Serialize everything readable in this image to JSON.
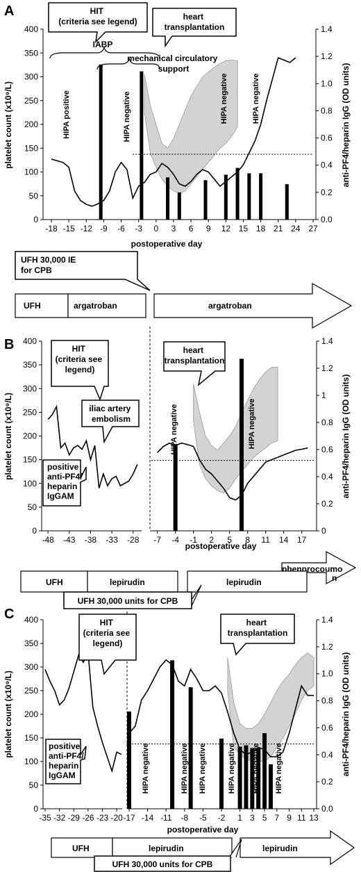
{
  "panels": [
    {
      "label": "A",
      "left_axis": {
        "title": "platelet count (x10⁹/L)",
        "ticks": [
          "0",
          "50",
          "100",
          "150",
          "200",
          "250",
          "300",
          "350",
          "400"
        ]
      },
      "right_axis": {
        "title": "anti-PF4/heparin IgG (OD units)",
        "ticks": [
          "0.0",
          "0.2",
          "0.4",
          "0.6",
          "0.8",
          "1.0",
          "1.2",
          "1.4"
        ]
      },
      "x_axis": {
        "title": "postoperative day",
        "ticks": [
          "-18",
          "-15",
          "-12",
          "-9",
          "-6",
          "-3",
          "0",
          "3",
          "6",
          "9",
          "12",
          "15",
          "18",
          "21",
          "24",
          "27"
        ]
      },
      "callouts": {
        "hit": "HIT\n(criteria see legend)",
        "transplant": "heart\ntransplantation",
        "iabp": "IABP",
        "mcs": "mechanical circulatory\nsupport",
        "ufh_cpb": "UFH 30,000 IE\nfor CPB"
      },
      "bar_labels": {
        "b1": "HIPA positive",
        "b2": "HIPA negative",
        "b3": "HIPA negative",
        "b4": "HIPA negative"
      },
      "therapy": {
        "t1": "UFH",
        "t2": "argatroban",
        "t3": "argatroban"
      }
    },
    {
      "label": "B",
      "left_axis": {
        "title": "platelet count (x10⁹/L)",
        "ticks": [
          "0",
          "50",
          "100",
          "150",
          "200",
          "250",
          "300",
          "350",
          "400"
        ]
      },
      "right_axis": {
        "title": "anti-PF4/heparin IgG (OD units)",
        "ticks": [
          "0",
          "0.2",
          "0.4",
          "0.6",
          "0.8",
          "1",
          "1.2",
          "1.4"
        ]
      },
      "x_axis": {
        "title": "postoperative day",
        "ticks_pre": [
          "-48",
          "-43",
          "-38",
          "-33",
          "-28"
        ],
        "ticks_post": [
          "-7",
          "-4",
          "-1",
          "2",
          "5",
          "8",
          "11",
          "14",
          "17"
        ]
      },
      "callouts": {
        "hit": "HIT\n(criteria see\nlegend)",
        "transplant": "heart\ntransplantation",
        "iliac": "iliac artery\nembolism",
        "positive": "positive\nanti-PF4/\nheparin\nIgGAM",
        "ufh_cpb": "UFH 30,000 units for CPB"
      },
      "bar_labels": {
        "b1": "HIPA negative",
        "b2": "HIPA negative"
      },
      "therapy": {
        "t1": "UFH",
        "t2": "lepirudin",
        "t3": "lepirudin",
        "t4": "phenprocoumo\nn"
      }
    },
    {
      "label": "C",
      "left_axis": {
        "title": "platelet count (x10⁹/L)",
        "ticks": [
          "0",
          "50",
          "100",
          "150",
          "200",
          "250",
          "300",
          "350",
          "400"
        ]
      },
      "right_axis": {
        "title": "anti-PF4/heparin IgG (OD units)",
        "ticks": [
          "0.0",
          "0.2",
          "0.4",
          "0.6",
          "0.8",
          "1.0",
          "1.2",
          "1.4"
        ]
      },
      "x_axis": {
        "title": "postoperative day",
        "ticks_pre": [
          "-35",
          "-32",
          "-29",
          "-26",
          "-23",
          "-20"
        ],
        "ticks_post": [
          "-17",
          "-14",
          "-11",
          "-8",
          "-5",
          "-2",
          "1",
          "3",
          "5",
          "7",
          "9",
          "11",
          "13"
        ]
      },
      "callouts": {
        "hit": "HIT\n(criteria see\nlegend)",
        "transplant": "heart\ntransplantation",
        "positive": "positive\nanti-PF4/\nheparin\nIgGAM",
        "ufh_cpb": "UFH 30,000 units for CPB"
      },
      "bar_labels": {
        "b1": "HIPA negative",
        "b2": "HIPA negative",
        "b3": "HIPA negative",
        "b4": "HIPA negative",
        "b5": "HIPA negative",
        "b6": "HIPA negative"
      },
      "therapy": {
        "t1": "UFH",
        "t2": "lepirudin",
        "t3": "lepirudin"
      }
    }
  ],
  "chart_data": [
    {
      "type": "line+bar",
      "panel": "A",
      "xlabel": "postoperative day",
      "ylabel": "platelet count (x10⁹/L)",
      "y2label": "anti-PF4/heparin IgG (OD units)",
      "xlim": [
        -18,
        27
      ],
      "ylim": [
        0,
        400
      ],
      "y2lim": [
        0,
        1.4
      ],
      "platelet_line": {
        "x": [
          -18,
          -16,
          -15,
          -14,
          -13,
          -12,
          -11,
          -10,
          -9,
          -8,
          -7,
          -6,
          -5,
          -4,
          -3,
          -2,
          -1,
          0,
          1,
          2,
          3,
          4,
          5,
          6,
          7,
          8,
          9,
          10,
          11,
          12,
          13,
          14,
          15,
          16,
          17,
          18,
          19,
          20,
          21,
          22,
          23,
          24
        ],
        "y": [
          127,
          120,
          110,
          60,
          40,
          32,
          28,
          33,
          40,
          60,
          100,
          120,
          105,
          45,
          70,
          78,
          95,
          100,
          118,
          110,
          95,
          75,
          70,
          80,
          95,
          105,
          100,
          85,
          70,
          80,
          90,
          100,
          115,
          140,
          165,
          200,
          250,
          295,
          340,
          335,
          330,
          340
        ]
      },
      "range_band": {
        "x": [
          -2,
          -1,
          0,
          1,
          2,
          3,
          4,
          5,
          6,
          7,
          8,
          9,
          10,
          11,
          12,
          13,
          14
        ],
        "lower": [
          225,
          140,
          110,
          85,
          70,
          60,
          55,
          60,
          75,
          90,
          105,
          120,
          135,
          150,
          160,
          175,
          195
        ],
        "upper": [
          305,
          240,
          200,
          160,
          150,
          170,
          200,
          230,
          260,
          280,
          300,
          310,
          320,
          328,
          334,
          335,
          334
        ]
      },
      "igg_bars": {
        "x": [
          -9.5,
          -2.5,
          2,
          4,
          8.5,
          12,
          14,
          16,
          18,
          22.5
        ],
        "values": [
          1.14,
          1.09,
          0.31,
          0.2,
          0.29,
          0.33,
          0.38,
          0.34,
          0.34,
          0.26
        ]
      },
      "threshold": 0.48
    },
    {
      "type": "line+bar",
      "panel": "B",
      "xlabel": "postoperative day",
      "ylabel": "platelet count (x10⁹/L)",
      "y2label": "anti-PF4/heparin IgG (OD units)",
      "ylim": [
        0,
        400
      ],
      "y2lim": [
        0,
        1.4
      ],
      "pre_segment": {
        "xlim": [
          -49,
          -26
        ],
        "x": [
          -48,
          -47,
          -46,
          -45,
          -44,
          -43,
          -42,
          -41,
          -40,
          -39,
          -38,
          -37,
          -36,
          -35,
          -34,
          -33,
          -32,
          -31,
          -30,
          -29,
          -28,
          -27
        ],
        "y": [
          235,
          245,
          262,
          175,
          185,
          160,
          175,
          180,
          172,
          190,
          150,
          180,
          90,
          120,
          95,
          110,
          115,
          95,
          100,
          105,
          120,
          140
        ]
      },
      "post_segment": {
        "xlim": [
          -8,
          19
        ],
        "x": [
          -7,
          -6,
          -5,
          -4,
          -3,
          -2,
          -1,
          0,
          1,
          2,
          3,
          4,
          5,
          6,
          7,
          8,
          9,
          10,
          11,
          12,
          13,
          14,
          15,
          16,
          17,
          18
        ],
        "y": [
          165,
          178,
          185,
          180,
          185,
          182,
          178,
          150,
          130,
          120,
          105,
          90,
          70,
          65,
          75,
          100,
          115,
          130,
          145,
          150,
          155,
          160,
          165,
          170,
          172,
          175
        ]
      },
      "range_band": {
        "x": [
          -1,
          0,
          1,
          2,
          3,
          4,
          5,
          6,
          7,
          8,
          9,
          10,
          11,
          12,
          13
        ],
        "lower": [
          230,
          140,
          110,
          95,
          85,
          80,
          90,
          110,
          125,
          140,
          155,
          165,
          175,
          185,
          190
        ],
        "upper": [
          310,
          250,
          200,
          180,
          170,
          185,
          200,
          220,
          250,
          275,
          300,
          320,
          335,
          345,
          345
        ]
      },
      "igg_bars": {
        "x": [
          -4,
          7
        ],
        "values": [
          0.64,
          1.27
        ]
      },
      "threshold": 0.52
    },
    {
      "type": "line+bar",
      "panel": "C",
      "xlabel": "postoperative day",
      "ylabel": "platelet count (x10⁹/L)",
      "y2label": "anti-PF4/heparin IgG (OD units)",
      "ylim": [
        0,
        400
      ],
      "y2lim": [
        0,
        1.4
      ],
      "pre_segment": {
        "xlim": [
          -35,
          -19
        ],
        "x": [
          -35,
          -34,
          -33,
          -32,
          -31,
          -30,
          -29,
          -28,
          -27,
          -26,
          -25,
          -24,
          -23,
          -22,
          -21,
          -20,
          -19
        ],
        "y": [
          295,
          270,
          250,
          220,
          230,
          255,
          290,
          325,
          310,
          330,
          215,
          175,
          140,
          110,
          80,
          120,
          115
        ]
      },
      "post_segment": {
        "xlim": [
          -17,
          13
        ],
        "x": [
          -17,
          -16,
          -15,
          -14,
          -13,
          -12,
          -11,
          -10,
          -9,
          -8,
          -7,
          -6,
          -5,
          -4,
          -3,
          -2,
          -1,
          0,
          1,
          2,
          3,
          4,
          5,
          6,
          7,
          8,
          9,
          10,
          11,
          12,
          13
        ],
        "y": [
          160,
          175,
          230,
          250,
          275,
          300,
          315,
          305,
          270,
          260,
          295,
          275,
          250,
          250,
          260,
          245,
          205,
          160,
          125,
          115,
          120,
          130,
          125,
          110,
          110,
          120,
          160,
          210,
          260,
          240,
          240
        ]
      },
      "range_band": {
        "x": [
          -1,
          0,
          1,
          2,
          3,
          4,
          5,
          6,
          7,
          8,
          9,
          10,
          11,
          12,
          13
        ],
        "lower": [
          250,
          130,
          115,
          105,
          100,
          100,
          100,
          110,
          130,
          150,
          175,
          200,
          230,
          250,
          260
        ],
        "upper": [
          320,
          225,
          180,
          170,
          170,
          180,
          200,
          225,
          250,
          270,
          285,
          305,
          320,
          330,
          320
        ]
      },
      "igg_bars": {
        "x": [
          -17,
          -10,
          -7,
          -2,
          1,
          2,
          3,
          4,
          5,
          6
        ],
        "values": [
          0.72,
          1.1,
          0.9,
          0.52,
          0.46,
          0.47,
          0.45,
          0.45,
          0.56,
          0.33
        ]
      },
      "threshold": 0.48
    }
  ]
}
